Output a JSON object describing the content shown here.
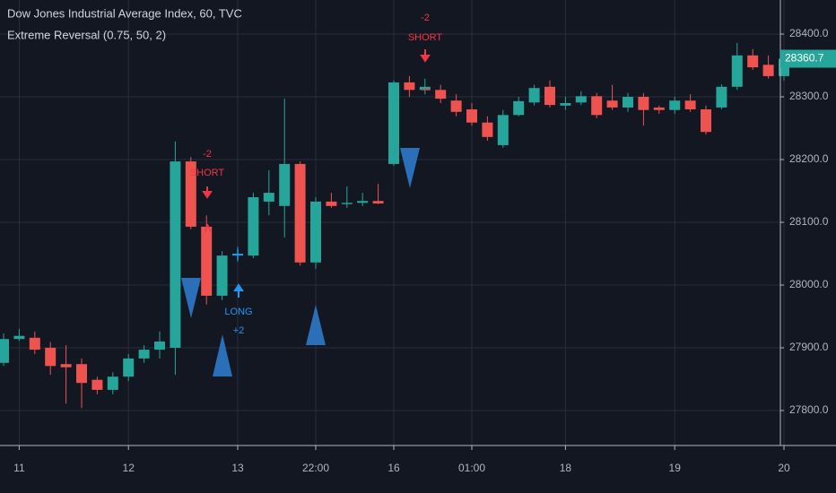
{
  "chart_data": {
    "type": "candlestick",
    "title": "Dow Jones Industrial Average Index, 60, TVC",
    "subtitle": "Extreme Reversal (0.75, 50, 2)",
    "annotations": [
      "-2",
      "SHORT",
      "LONG",
      "+2",
      "-2",
      "SHORT"
    ],
    "categories": [
      null,
      "11",
      null,
      null,
      null,
      null,
      null,
      null,
      "12",
      null,
      null,
      null,
      null,
      null,
      null,
      "13",
      null,
      null,
      null,
      null,
      "22:00",
      null,
      null,
      null,
      null,
      "16",
      null,
      null,
      null,
      null,
      "01:00",
      null,
      null,
      null,
      null,
      null,
      "18",
      null,
      null,
      null,
      null,
      null,
      null,
      "19",
      null,
      null,
      null,
      null,
      null,
      null,
      "20"
    ],
    "open": [
      27876,
      27914,
      27916,
      27900,
      27874,
      27874,
      27849,
      27833,
      27854,
      27883,
      27897,
      27900,
      28197,
      28093,
      27983,
      28047,
      28047,
      28133,
      28126,
      28193,
      28036,
      28133,
      28129,
      28131,
      28134,
      28193,
      28323,
      28311,
      28311,
      28294,
      28280,
      28259,
      28223,
      28271,
      28291,
      28316,
      28286,
      28291,
      28301,
      28294,
      28283,
      28300,
      28283,
      28279,
      28294,
      28280,
      28283,
      28316,
      28366,
      28351,
      28333
    ],
    "high": [
      27923,
      27930,
      27926,
      27909,
      27904,
      27883,
      27854,
      27861,
      27890,
      27904,
      27926,
      28229,
      28204,
      28111,
      28054,
      28061,
      28147,
      28183,
      28297,
      28197,
      28140,
      28147,
      28157,
      28147,
      28161,
      28326,
      28333,
      28329,
      28319,
      28304,
      28290,
      28269,
      28279,
      28300,
      28319,
      28326,
      28300,
      28309,
      28306,
      28319,
      28306,
      28306,
      28286,
      28300,
      28304,
      28286,
      28320,
      28386,
      28376,
      28366,
      28369
    ],
    "low": [
      27871,
      27911,
      27890,
      27857,
      27811,
      27804,
      27826,
      27826,
      27847,
      27876,
      27883,
      27857,
      28089,
      27969,
      27976,
      28037,
      28043,
      28111,
      28076,
      28031,
      28026,
      28123,
      28123,
      28126,
      28129,
      28190,
      28300,
      28304,
      28290,
      28269,
      28254,
      28230,
      28219,
      28269,
      28286,
      28283,
      28279,
      28287,
      28266,
      28279,
      28276,
      28254,
      28273,
      28273,
      28276,
      28240,
      28280,
      28311,
      28343,
      28329,
      28326
    ],
    "close": [
      27914,
      27919,
      27897,
      27871,
      27869,
      27844,
      27833,
      27854,
      27883,
      27897,
      27910,
      28197,
      28093,
      27983,
      28047,
      28050,
      28140,
      28147,
      28193,
      28036,
      28133,
      28126,
      28131,
      28134,
      28130,
      28323,
      28311,
      28316,
      28297,
      28276,
      28259,
      28236,
      28271,
      28293,
      28314,
      28287,
      28290,
      28301,
      28271,
      28283,
      28300,
      28279,
      28279,
      28294,
      28280,
      28244,
      28316,
      28366,
      28347,
      28333,
      28360.7
    ],
    "up_color": "#26a69a",
    "down_color": "#ef5350",
    "ylim": [
      27744.3,
      28454.3
    ],
    "yticks": [
      {
        "value": 27800,
        "label": "27800.0"
      },
      {
        "value": 27900,
        "label": "27900.0"
      },
      {
        "value": 28000,
        "label": "28000.0"
      },
      {
        "value": 28100,
        "label": "28100.0"
      },
      {
        "value": 28200,
        "label": "28200.0"
      },
      {
        "value": 28300,
        "label": "28300.0"
      },
      {
        "value": 28400,
        "label": "28400.0"
      }
    ],
    "grid": true
  }
}
